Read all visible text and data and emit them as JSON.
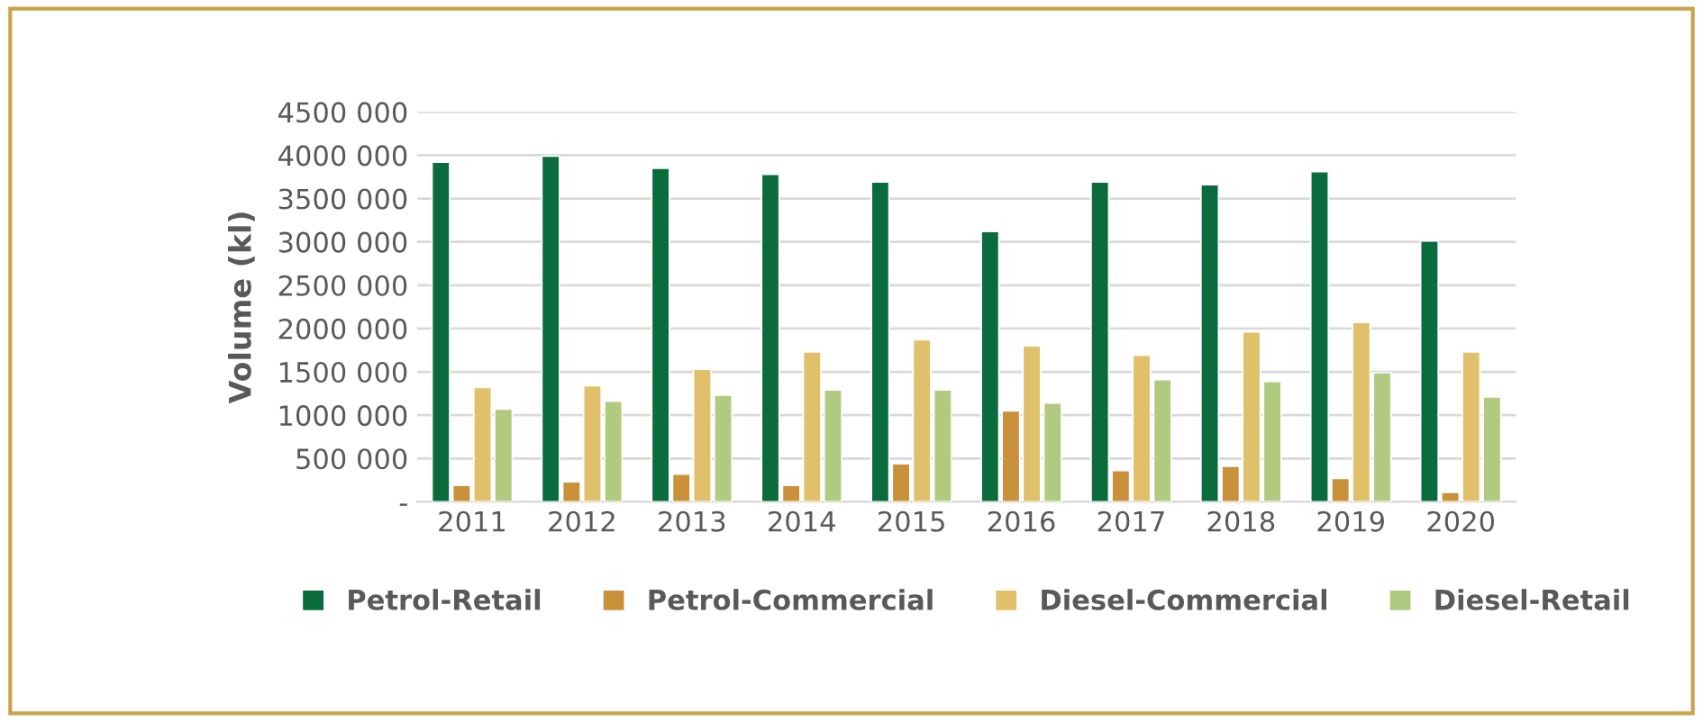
{
  "chart_data": {
    "type": "bar",
    "ylabel": "Volume (kl)",
    "categories": [
      "2011",
      "2012",
      "2013",
      "2014",
      "2015",
      "2016",
      "2017",
      "2018",
      "2019",
      "2020"
    ],
    "series": [
      {
        "name": "Petrol-Retail",
        "color": "#0a6b3c",
        "values": [
          3920000,
          3990000,
          3850000,
          3780000,
          3690000,
          3120000,
          3690000,
          3660000,
          3810000,
          3010000
        ]
      },
      {
        "name": "Petrol-Commercial",
        "color": "#c8913a",
        "values": [
          190000,
          230000,
          320000,
          190000,
          440000,
          1050000,
          360000,
          410000,
          270000,
          110000
        ]
      },
      {
        "name": "Diesel-Commercial",
        "color": "#e0c06a",
        "values": [
          1320000,
          1340000,
          1530000,
          1730000,
          1870000,
          1800000,
          1690000,
          1960000,
          2070000,
          1730000
        ]
      },
      {
        "name": "Diesel-Retail",
        "color": "#b0cb80",
        "values": [
          1070000,
          1160000,
          1230000,
          1290000,
          1290000,
          1140000,
          1410000,
          1390000,
          1490000,
          1210000
        ]
      }
    ],
    "ylim": [
      0,
      4500000
    ],
    "yticks": [
      {
        "value": 0,
        "label": "-"
      },
      {
        "value": 500000,
        "label": "500 000"
      },
      {
        "value": 1000000,
        "label": "1000 000"
      },
      {
        "value": 1500000,
        "label": "1500 000"
      },
      {
        "value": 2000000,
        "label": "2000 000"
      },
      {
        "value": 2500000,
        "label": "2500 000"
      },
      {
        "value": 3000000,
        "label": "3000 000"
      },
      {
        "value": 3500000,
        "label": "3500 000"
      },
      {
        "value": 4000000,
        "label": "4000 000"
      },
      {
        "value": 4500000,
        "label": "4500 000"
      }
    ],
    "grid": "y",
    "legend": "bottom"
  }
}
